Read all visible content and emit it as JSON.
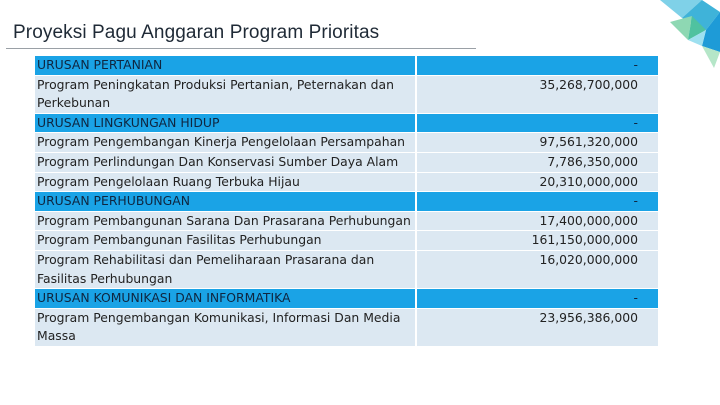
{
  "title": "Proyeksi Pagu Anggaran Program Prioritas",
  "rows": [
    {
      "type": "head",
      "name": "URUSAN PERTANIAN",
      "value": "-"
    },
    {
      "type": "prog",
      "name": "Program Peningkatan Produksi Pertanian, Peternakan dan Perkebunan",
      "value": "35,268,700,000"
    },
    {
      "type": "head",
      "name": "URUSAN LINGKUNGAN HIDUP",
      "value": "-"
    },
    {
      "type": "prog",
      "name": "Program Pengembangan Kinerja Pengelolaan Persampahan",
      "value": "97,561,320,000"
    },
    {
      "type": "prog",
      "name": "Program Perlindungan Dan Konservasi Sumber Daya Alam",
      "value": "7,786,350,000"
    },
    {
      "type": "prog",
      "name": "Program Pengelolaan Ruang Terbuka Hijau",
      "value": "20,310,000,000"
    },
    {
      "type": "head",
      "name": "URUSAN PERHUBUNGAN",
      "value": "-"
    },
    {
      "type": "prog",
      "name": "Program Pembangunan Sarana Dan Prasarana Perhubungan",
      "value": "17,400,000,000"
    },
    {
      "type": "prog",
      "name": "Program Pembangunan Fasilitas Perhubungan",
      "value": "161,150,000,000"
    },
    {
      "type": "prog",
      "name": "Program Rehabilitasi dan Pemeliharaan Prasarana dan Fasilitas Perhubungan",
      "value": "16,020,000,000"
    },
    {
      "type": "head",
      "name": "URUSAN KOMUNIKASI DAN INFORMATIKA",
      "value": "-"
    },
    {
      "type": "prog",
      "name": "Program Pengembangan Komunikasi, Informasi Dan Media Massa",
      "value": "23,956,386,000"
    }
  ],
  "colors": {
    "header_row": "#1aa3e6",
    "program_row": "#dce8f2"
  }
}
